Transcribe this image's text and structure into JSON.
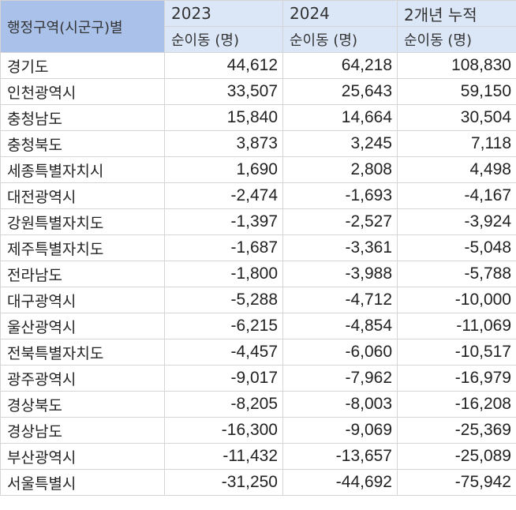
{
  "table": {
    "corner_header": "행정구역(시군구)별",
    "years": [
      "2023",
      "2024",
      "2개년 누적"
    ],
    "unit_headers": [
      "순이동 (명)",
      "순이동 (명)",
      "순이동 (명)"
    ],
    "rows": [
      {
        "region": "경기도",
        "v2023": "44,612",
        "v2024": "64,218",
        "total": "108,830"
      },
      {
        "region": "인천광역시",
        "v2023": "33,507",
        "v2024": "25,643",
        "total": "59,150"
      },
      {
        "region": "충청남도",
        "v2023": "15,840",
        "v2024": "14,664",
        "total": "30,504"
      },
      {
        "region": "충청북도",
        "v2023": "3,873",
        "v2024": "3,245",
        "total": "7,118"
      },
      {
        "region": "세종특별자치시",
        "v2023": "1,690",
        "v2024": "2,808",
        "total": "4,498"
      },
      {
        "region": "대전광역시",
        "v2023": "-2,474",
        "v2024": "-1,693",
        "total": "-4,167"
      },
      {
        "region": "강원특별자치도",
        "v2023": "-1,397",
        "v2024": "-2,527",
        "total": "-3,924"
      },
      {
        "region": "제주특별자치도",
        "v2023": "-1,687",
        "v2024": "-3,361",
        "total": "-5,048"
      },
      {
        "region": "전라남도",
        "v2023": "-1,800",
        "v2024": "-3,988",
        "total": "-5,788"
      },
      {
        "region": "대구광역시",
        "v2023": "-5,288",
        "v2024": "-4,712",
        "total": "-10,000"
      },
      {
        "region": "울산광역시",
        "v2023": "-6,215",
        "v2024": "-4,854",
        "total": "-11,069"
      },
      {
        "region": "전북특별자치도",
        "v2023": "-4,457",
        "v2024": "-6,060",
        "total": "-10,517"
      },
      {
        "region": "광주광역시",
        "v2023": "-9,017",
        "v2024": "-7,962",
        "total": "-16,979"
      },
      {
        "region": "경상북도",
        "v2023": "-8,205",
        "v2024": "-8,003",
        "total": "-16,208"
      },
      {
        "region": "경상남도",
        "v2023": "-16,300",
        "v2024": "-9,069",
        "total": "-25,369"
      },
      {
        "region": "부산광역시",
        "v2023": "-11,432",
        "v2024": "-13,657",
        "total": "-25,089"
      },
      {
        "region": "서울특별시",
        "v2023": "-31,250",
        "v2024": "-44,692",
        "total": "-75,942"
      }
    ]
  }
}
